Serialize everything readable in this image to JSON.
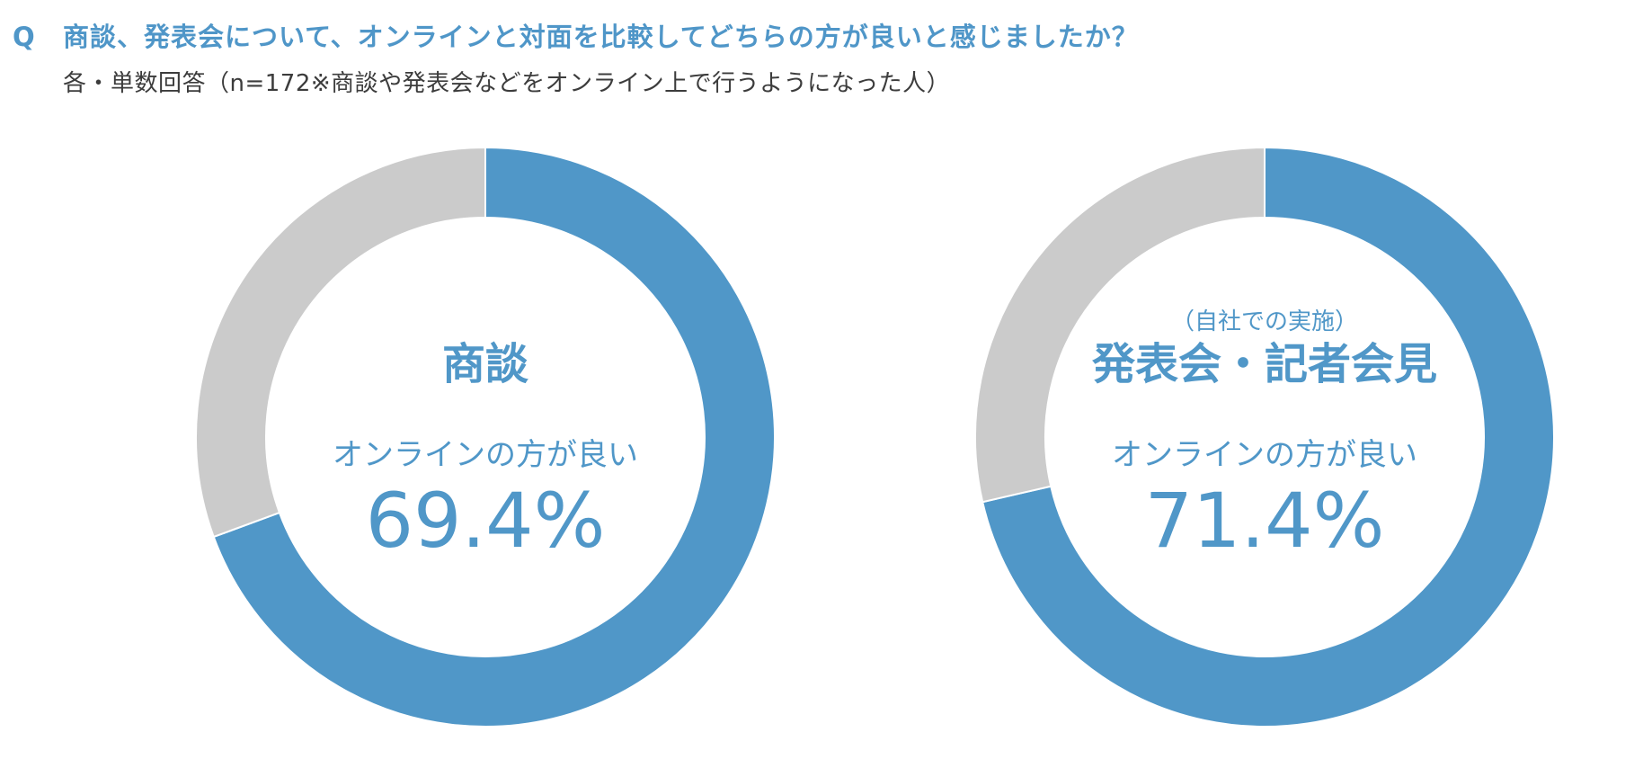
{
  "header": {
    "q_mark": "Q",
    "question": "商談、発表会について、オンラインと対面を比較してどちらの方が良いと感じましたか？",
    "subtitle": "各・単数回答（n=172※商談や発表会などをオンライン上で行うようになった人）"
  },
  "colors": {
    "accent": "#5097c8",
    "rest": "#cbcbcb",
    "background": "#ffffff"
  },
  "chart_data": [
    {
      "type": "pie",
      "style": "donut",
      "title": "商談",
      "note": "",
      "center_label": "オンラインの方が良い",
      "slices": [
        {
          "label": "オンラインの方が良い",
          "value": 69.4
        },
        {
          "label": "",
          "value": 30.6
        }
      ],
      "value_label": "69.4%"
    },
    {
      "type": "pie",
      "style": "donut",
      "title": "発表会・記者会見",
      "note": "（自社での実施）",
      "center_label": "オンラインの方が良い",
      "slices": [
        {
          "label": "オンラインの方が良い",
          "value": 71.4
        },
        {
          "label": "",
          "value": 28.6
        }
      ],
      "value_label": "71.4%"
    }
  ]
}
